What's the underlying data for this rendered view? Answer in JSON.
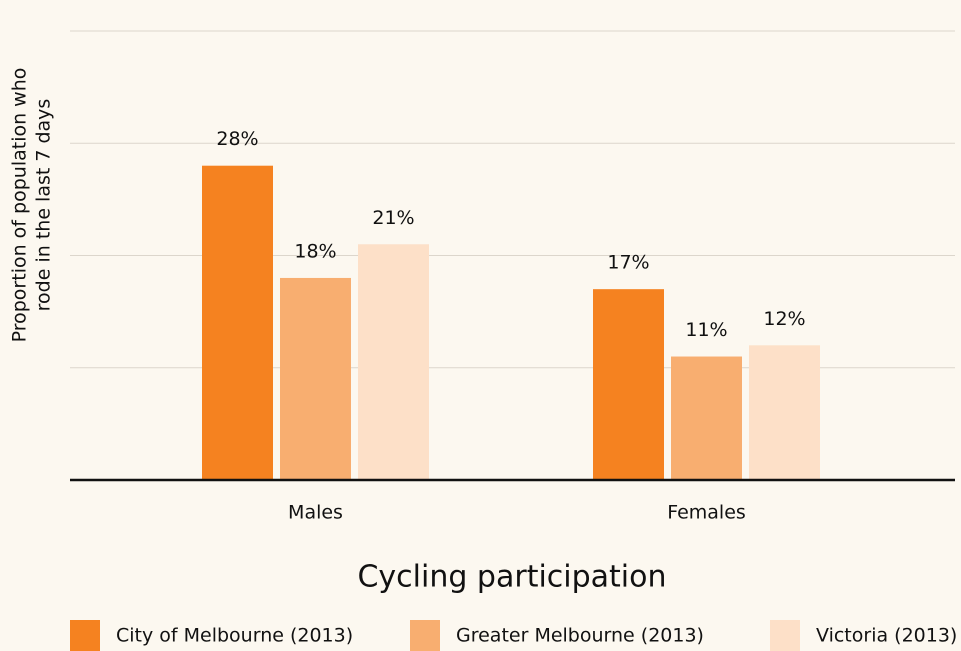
{
  "chart_data": {
    "type": "bar",
    "title": "Cycling participation",
    "ylabel": [
      "Proportion of population who",
      "rode in the last 7 days"
    ],
    "categories": [
      "Males",
      "Females"
    ],
    "series": [
      {
        "name": "City of Melbourne (2013)",
        "color": "#f58220",
        "values": [
          28,
          17
        ],
        "value_labels": [
          "28%",
          "17%"
        ]
      },
      {
        "name": "Greater Melbourne (2013)",
        "color": "#f8ae70",
        "values": [
          18,
          11
        ],
        "value_labels": [
          "18%",
          "11%"
        ]
      },
      {
        "name": "Victoria (2013)",
        "color": "#fde0c8",
        "values": [
          21,
          12
        ],
        "value_labels": [
          "21%",
          "12%"
        ]
      }
    ],
    "ylim": [
      0,
      40
    ],
    "yticks": [
      0,
      10,
      20,
      30,
      40
    ],
    "grid": true,
    "legend": "bottom"
  }
}
